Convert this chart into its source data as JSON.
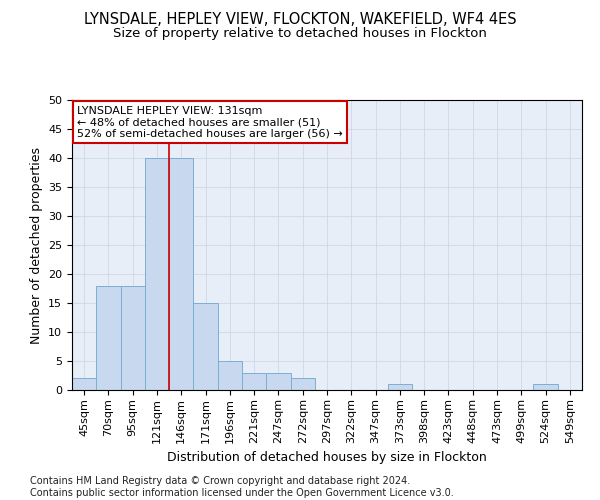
{
  "title1": "LYNSDALE, HEPLEY VIEW, FLOCKTON, WAKEFIELD, WF4 4ES",
  "title2": "Size of property relative to detached houses in Flockton",
  "xlabel": "Distribution of detached houses by size in Flockton",
  "ylabel": "Number of detached properties",
  "footer1": "Contains HM Land Registry data © Crown copyright and database right 2024.",
  "footer2": "Contains public sector information licensed under the Open Government Licence v3.0.",
  "categories": [
    "45sqm",
    "70sqm",
    "95sqm",
    "121sqm",
    "146sqm",
    "171sqm",
    "196sqm",
    "221sqm",
    "247sqm",
    "272sqm",
    "297sqm",
    "322sqm",
    "347sqm",
    "373sqm",
    "398sqm",
    "423sqm",
    "448sqm",
    "473sqm",
    "499sqm",
    "524sqm",
    "549sqm"
  ],
  "values": [
    2,
    18,
    18,
    40,
    40,
    15,
    5,
    3,
    3,
    2,
    0,
    0,
    0,
    1,
    0,
    0,
    0,
    0,
    0,
    1,
    0
  ],
  "bar_color": "#c8d9ef",
  "bar_edge_color": "#7bafd4",
  "grid_color": "#d0d8e8",
  "bg_color": "#e8eef8",
  "vline_color": "#cc0000",
  "vline_x": 3.5,
  "annotation_text": "LYNSDALE HEPLEY VIEW: 131sqm\n← 48% of detached houses are smaller (51)\n52% of semi-detached houses are larger (56) →",
  "annotation_box_color": "#ffffff",
  "annotation_box_edge": "#cc0000",
  "ylim": [
    0,
    50
  ],
  "yticks": [
    0,
    5,
    10,
    15,
    20,
    25,
    30,
    35,
    40,
    45,
    50
  ],
  "title1_fontsize": 10.5,
  "title2_fontsize": 9.5,
  "xlabel_fontsize": 9,
  "ylabel_fontsize": 9,
  "tick_fontsize": 8,
  "footer_fontsize": 7,
  "annotation_fontsize": 8
}
